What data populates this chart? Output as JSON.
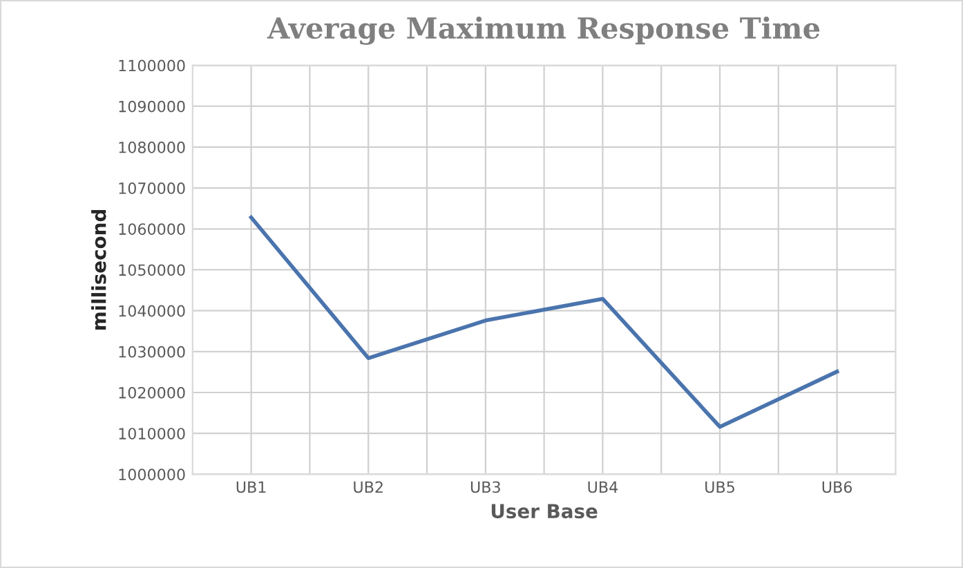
{
  "chart_data": {
    "type": "line",
    "title": "Average Maximum Response Time",
    "xlabel": "User Base",
    "ylabel": "millisecond",
    "categories": [
      "UB1",
      "UB2",
      "UB3",
      "UB4",
      "UB5",
      "UB6"
    ],
    "series": [
      {
        "color": "#4a74ad",
        "values": [
          1062800,
          1028400,
          1037600,
          1042900,
          1011600,
          1025100
        ]
      }
    ],
    "ylim": [
      1000000,
      1100000
    ],
    "yticks": [
      1000000,
      1010000,
      1020000,
      1030000,
      1040000,
      1050000,
      1060000,
      1070000,
      1080000,
      1090000,
      1100000
    ],
    "grid": true,
    "legend": false,
    "marker": "none",
    "line_style": "solid"
  }
}
